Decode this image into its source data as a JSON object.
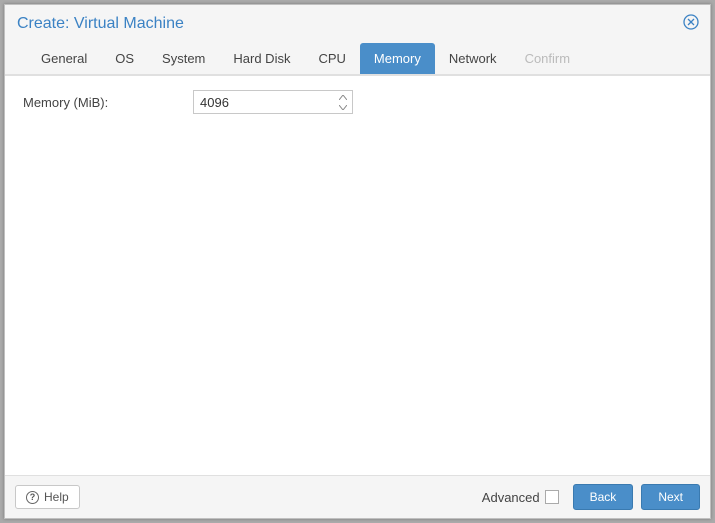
{
  "dialog": {
    "title": "Create: Virtual Machine"
  },
  "tabs": [
    {
      "label": "General",
      "state": "normal"
    },
    {
      "label": "OS",
      "state": "normal"
    },
    {
      "label": "System",
      "state": "normal"
    },
    {
      "label": "Hard Disk",
      "state": "normal"
    },
    {
      "label": "CPU",
      "state": "normal"
    },
    {
      "label": "Memory",
      "state": "active"
    },
    {
      "label": "Network",
      "state": "normal"
    },
    {
      "label": "Confirm",
      "state": "disabled"
    }
  ],
  "form": {
    "memory": {
      "label": "Memory (MiB):",
      "value": "4096"
    }
  },
  "footer": {
    "help_label": "Help",
    "advanced_label": "Advanced",
    "advanced_checked": false,
    "back_label": "Back",
    "next_label": "Next"
  },
  "colors": {
    "accent": "#4a8ec9",
    "title": "#3b82c4",
    "header_bg": "#f5f5f5",
    "border": "#c8c8c8"
  }
}
